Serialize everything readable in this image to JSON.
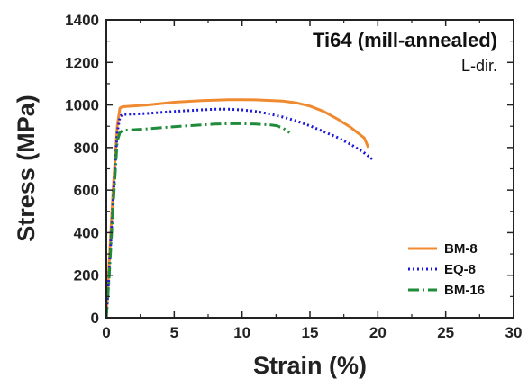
{
  "chart_data": {
    "type": "line",
    "xlabel": "Strain (%)",
    "ylabel": "Stress (MPa)",
    "xlim": [
      0,
      30
    ],
    "ylim": [
      0,
      1400
    ],
    "xticks": [
      0,
      5,
      10,
      15,
      20,
      25,
      30
    ],
    "yticks": [
      0,
      200,
      400,
      600,
      800,
      1000,
      1200,
      1400
    ],
    "annotation_title": "Ti64 (mill-annealed)",
    "annotation_subtitle": "L-dir.",
    "legend_position": "bottom-right",
    "grid": false,
    "series": [
      {
        "name": "BM-8",
        "color": "#F08A30",
        "dash": "solid",
        "x": [
          0,
          0.2,
          0.5,
          0.8,
          1.0,
          1.2,
          3,
          5,
          7,
          9,
          10,
          11,
          13,
          14,
          15,
          16,
          17,
          18,
          18.5,
          19,
          19.3
        ],
        "y": [
          0,
          250,
          600,
          900,
          985,
          992,
          1000,
          1013,
          1020,
          1025,
          1025,
          1024,
          1018,
          1010,
          995,
          970,
          935,
          895,
          870,
          845,
          800
        ]
      },
      {
        "name": "EQ-8",
        "color": "#1A1AD8",
        "dash": "dotted",
        "x": [
          0,
          0.2,
          0.5,
          0.8,
          1.0,
          1.2,
          3,
          5,
          7,
          8,
          9,
          10,
          11,
          12,
          13,
          14,
          15,
          16,
          17,
          18,
          19,
          19.6
        ],
        "y": [
          0,
          200,
          550,
          870,
          945,
          955,
          960,
          970,
          977,
          980,
          980,
          977,
          970,
          958,
          943,
          925,
          902,
          875,
          848,
          815,
          775,
          745
        ]
      },
      {
        "name": "BM-16",
        "color": "#1E8C3A",
        "dash": "dashdot",
        "x": [
          0,
          0.2,
          0.5,
          0.8,
          1.0,
          1.2,
          3,
          5,
          7,
          8,
          9,
          10,
          11,
          12,
          12.5,
          13,
          13.5
        ],
        "y": [
          0,
          180,
          520,
          830,
          870,
          880,
          888,
          898,
          906,
          910,
          912,
          912,
          910,
          907,
          903,
          892,
          870
        ]
      }
    ]
  }
}
